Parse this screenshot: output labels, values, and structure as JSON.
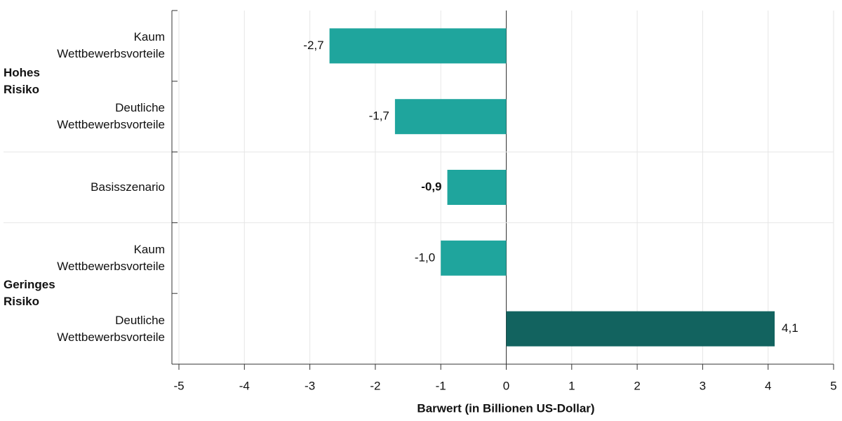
{
  "chart_data": {
    "type": "barh",
    "categories": [
      "Kaum Wettbewerbsvorteile",
      "Deutliche Wettbewerbsvorteile",
      "Basisszenario",
      "Kaum Wettbewerbsvorteile",
      "Deutliche Wettbewerbsvorteile"
    ],
    "groups": [
      "Hohes Risiko",
      "Geringes Risiko"
    ],
    "values": [
      -2.7,
      -1.7,
      -0.9,
      -1.0,
      4.1
    ],
    "value_labels": [
      "-2,7",
      "-1,7",
      "-0,9",
      "-1,0",
      "4,1"
    ],
    "colors": [
      "#1fa59d",
      "#1fa59d",
      "#1fa59d",
      "#1fa59d",
      "#12635f"
    ],
    "xlabel": "Barwert (in Billionen US-Dollar)",
    "xlim": [
      -5,
      5
    ],
    "xticks": [
      -5,
      -4,
      -3,
      -2,
      -1,
      0,
      1,
      2,
      3,
      4,
      5
    ],
    "grid": true
  }
}
